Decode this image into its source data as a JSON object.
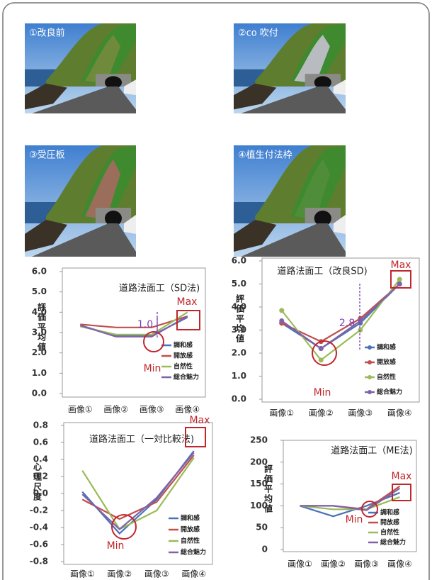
{
  "photos": [
    {
      "label": "①改良前"
    },
    {
      "label": "②co 吹付"
    },
    {
      "label": "③受圧板"
    },
    {
      "label": "④植生付法枠"
    }
  ],
  "chart_data": [
    {
      "type": "line",
      "title": "道路法面工（SD法)",
      "y_label": "評価平均値",
      "categories": [
        "画像①",
        "画像②",
        "画像③",
        "画像④"
      ],
      "ylim": [
        0,
        6
      ],
      "yticks": [
        {
          "value": 0,
          "label": "0.0"
        },
        {
          "value": 1,
          "label": "1.0"
        },
        {
          "value": 2,
          "label": "2.0"
        },
        {
          "value": 3,
          "label": "3.0"
        },
        {
          "value": 4,
          "label": "4.0"
        },
        {
          "value": 5,
          "label": "5.0"
        },
        {
          "value": 6,
          "label": "6.0"
        }
      ],
      "markers": false,
      "grid": false,
      "legend": "lower-right",
      "series": [
        {
          "name": "調和感",
          "color": "#4a72b8",
          "values": [
            3.35,
            2.85,
            2.85,
            3.75
          ]
        },
        {
          "name": "開放感",
          "color": "#c0504d",
          "values": [
            3.4,
            3.25,
            3.25,
            3.8
          ]
        },
        {
          "name": "自然性",
          "color": "#9bbb59",
          "values": [
            3.3,
            2.9,
            2.9,
            4.0
          ]
        },
        {
          "name": "総合魅力",
          "color": "#7f63a8",
          "values": [
            3.35,
            2.8,
            2.8,
            3.8
          ]
        }
      ],
      "annotations": [
        "Max",
        "Min",
        "1.0"
      ]
    },
    {
      "type": "line",
      "title": "道路法面工（改良SD)",
      "y_label": "評価平均値",
      "categories": [
        "画像①",
        "画像②",
        "画像③",
        "画像④"
      ],
      "ylim": [
        0,
        6
      ],
      "yticks": [
        {
          "value": 0,
          "label": "0.0"
        },
        {
          "value": 1,
          "label": "1.0"
        },
        {
          "value": 2,
          "label": "2.0"
        },
        {
          "value": 3,
          "label": "3.0"
        },
        {
          "value": 4,
          "label": "4.0"
        },
        {
          "value": 5,
          "label": "5.0"
        },
        {
          "value": 6,
          "label": "6.0"
        }
      ],
      "markers": true,
      "grid": false,
      "legend": "lower-right",
      "series": [
        {
          "name": "調和感",
          "color": "#4a72b8",
          "values": [
            3.3,
            2.2,
            3.3,
            5.0
          ]
        },
        {
          "name": "開放感",
          "color": "#c0504d",
          "values": [
            3.3,
            2.5,
            3.5,
            5.0
          ]
        },
        {
          "name": "自然性",
          "color": "#9bbb59",
          "values": [
            3.85,
            1.7,
            3.0,
            5.2
          ]
        },
        {
          "name": "総合魅力",
          "color": "#7f63a8",
          "values": [
            3.4,
            2.2,
            3.4,
            5.0
          ]
        }
      ],
      "annotations": [
        "Max",
        "Min",
        "2.8"
      ]
    },
    {
      "type": "line",
      "title": "道路法面工（一対比較法)",
      "y_label": "心理尺度",
      "categories": [
        "画像①",
        "画像②",
        "画像③",
        "画像④"
      ],
      "ylim": [
        -0.8,
        0.8
      ],
      "yticks": [
        {
          "value": -0.8,
          "label": "-0.8"
        },
        {
          "value": -0.6,
          "label": "-0.6"
        },
        {
          "value": -0.4,
          "label": "-0.4"
        },
        {
          "value": -0.2,
          "label": "-0.2"
        },
        {
          "value": 0,
          "label": "0.0"
        },
        {
          "value": 0.2,
          "label": "0.2"
        },
        {
          "value": 0.4,
          "label": "0.4"
        },
        {
          "value": 0.6,
          "label": "0.6"
        },
        {
          "value": 0.8,
          "label": "0.8"
        }
      ],
      "markers": false,
      "grid": false,
      "legend": "lower-right",
      "series": [
        {
          "name": "調和感",
          "color": "#4a72b8",
          "values": [
            0.02,
            -0.47,
            -0.07,
            0.5
          ]
        },
        {
          "name": "開放感",
          "color": "#c0504d",
          "values": [
            -0.07,
            -0.3,
            -0.1,
            0.45
          ]
        },
        {
          "name": "自然性",
          "color": "#9bbb59",
          "values": [
            0.27,
            -0.42,
            -0.2,
            0.42
          ]
        },
        {
          "name": "総合魅力",
          "color": "#7f63a8",
          "values": [
            -0.01,
            -0.42,
            -0.05,
            0.48
          ]
        }
      ],
      "annotations": [
        "Max",
        "Min"
      ]
    },
    {
      "type": "line",
      "title": "道路法面工（ME法)",
      "y_label": "評価平均値",
      "categories": [
        "画像①",
        "画像②",
        "画像③",
        "画像④"
      ],
      "ylim": [
        0,
        250
      ],
      "yticks": [
        0,
        50,
        100,
        150,
        200,
        250
      ],
      "markers": false,
      "grid": false,
      "legend": "lower-right",
      "series": [
        {
          "name": "調和感",
          "color": "#4a72b8",
          "values": [
            100,
            76,
            100,
            130
          ]
        },
        {
          "name": "開放感",
          "color": "#c0504d",
          "values": [
            100,
            100,
            92,
            145
          ]
        },
        {
          "name": "自然性",
          "color": "#9bbb59",
          "values": [
            100,
            92,
            92,
            120
          ]
        },
        {
          "name": "総合魅力",
          "color": "#7f63a8",
          "values": [
            100,
            100,
            90,
            140
          ]
        }
      ],
      "annotations": [
        "Max",
        "Min"
      ]
    }
  ]
}
